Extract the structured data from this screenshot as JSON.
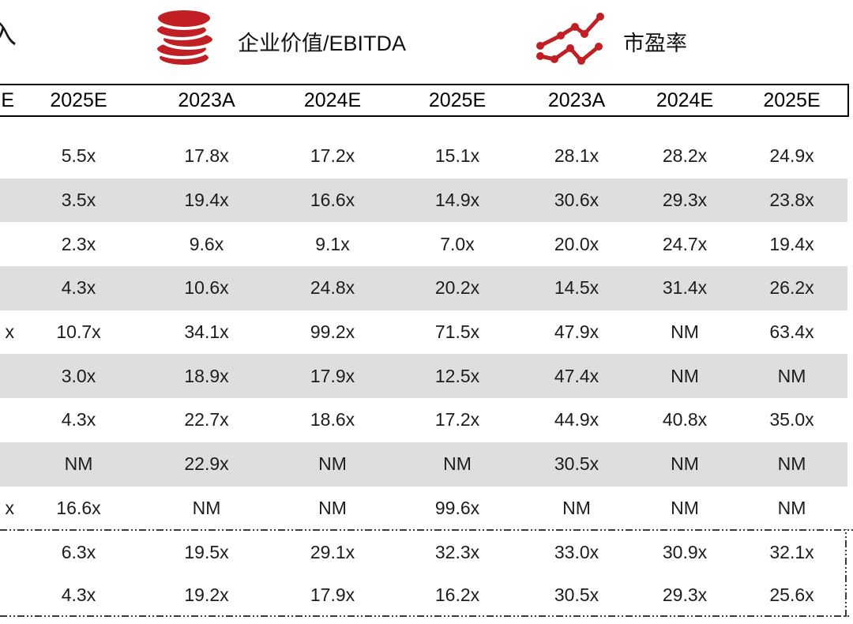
{
  "legend": {
    "left_fragment": "入",
    "items": [
      {
        "icon": "coins-icon",
        "label": "企业价值/EBITDA"
      },
      {
        "icon": "line-chart-icon",
        "label": "市盈率"
      }
    ]
  },
  "table": {
    "header_fragment": "E",
    "columns": [
      "2025E",
      "2023A",
      "2024E",
      "2025E",
      "2023A",
      "2024E",
      "2025E"
    ],
    "rows": [
      {
        "fragment": "",
        "shaded": false,
        "values": [
          "5.5x",
          "17.8x",
          "17.2x",
          "15.1x",
          "28.1x",
          "28.2x",
          "24.9x"
        ]
      },
      {
        "fragment": "",
        "shaded": true,
        "values": [
          "3.5x",
          "19.4x",
          "16.6x",
          "14.9x",
          "30.6x",
          "29.3x",
          "23.8x"
        ]
      },
      {
        "fragment": "",
        "shaded": false,
        "values": [
          "2.3x",
          "9.6x",
          "9.1x",
          "7.0x",
          "20.0x",
          "24.7x",
          "19.4x"
        ]
      },
      {
        "fragment": "",
        "shaded": true,
        "values": [
          "4.3x",
          "10.6x",
          "24.8x",
          "20.2x",
          "14.5x",
          "31.4x",
          "26.2x"
        ]
      },
      {
        "fragment": "x",
        "shaded": false,
        "values": [
          "10.7x",
          "34.1x",
          "99.2x",
          "71.5x",
          "47.9x",
          "NM",
          "63.4x"
        ]
      },
      {
        "fragment": "",
        "shaded": true,
        "values": [
          "3.0x",
          "18.9x",
          "17.9x",
          "12.5x",
          "47.4x",
          "NM",
          "NM"
        ]
      },
      {
        "fragment": "",
        "shaded": false,
        "values": [
          "4.3x",
          "22.7x",
          "18.6x",
          "17.2x",
          "44.9x",
          "40.8x",
          "35.0x"
        ]
      },
      {
        "fragment": "",
        "shaded": true,
        "values": [
          "NM",
          "22.9x",
          "NM",
          "NM",
          "30.5x",
          "NM",
          "NM"
        ]
      },
      {
        "fragment": "x",
        "shaded": false,
        "values": [
          "16.6x",
          "NM",
          "NM",
          "99.6x",
          "NM",
          "NM",
          "NM"
        ]
      }
    ],
    "summary_rows": [
      {
        "fragment": "",
        "values": [
          "6.3x",
          "19.5x",
          "29.1x",
          "32.3x",
          "33.0x",
          "30.9x",
          "32.1x"
        ]
      },
      {
        "fragment": "",
        "values": [
          "4.3x",
          "19.2x",
          "17.9x",
          "16.2x",
          "30.5x",
          "29.3x",
          "25.6x"
        ]
      }
    ]
  },
  "colors": {
    "accent_red": "#c01f24",
    "row_shade": "#dedede",
    "text": "#1c1c1c",
    "dash": "#3c3c3c"
  }
}
